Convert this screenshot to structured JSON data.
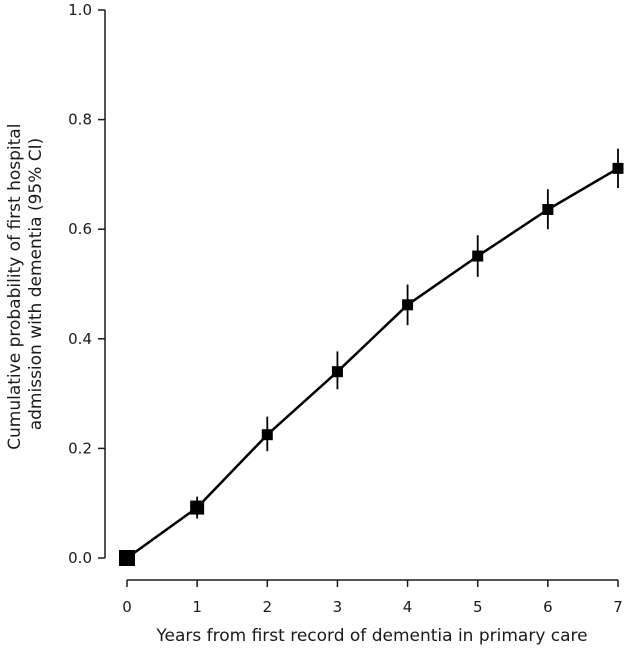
{
  "chart_data": {
    "type": "line",
    "title": "",
    "xlabel": "Years from first record of dementia in primary care",
    "ylabel_lines": [
      "Cumulative probability of first hospital",
      "admission with dementia (95% CI)"
    ],
    "xlim": [
      0,
      7
    ],
    "ylim": [
      0,
      1.0
    ],
    "x_ticks": [
      "0",
      "1",
      "2",
      "3",
      "4",
      "5",
      "6",
      "7"
    ],
    "y_ticks": [
      "0.0",
      "0.2",
      "0.4",
      "0.6",
      "0.8",
      "1.0"
    ],
    "grid": false,
    "legend": "none",
    "series": [
      {
        "x": [
          0,
          1,
          2,
          3,
          4,
          5,
          6,
          7
        ],
        "y": [
          0.0,
          0.092,
          0.225,
          0.34,
          0.462,
          0.551,
          0.636,
          0.711
        ],
        "ci_lower": [
          0.0,
          0.072,
          0.195,
          0.308,
          0.425,
          0.513,
          0.6,
          0.675
        ],
        "ci_upper": [
          0.0,
          0.112,
          0.258,
          0.377,
          0.499,
          0.589,
          0.673,
          0.747
        ],
        "marker_sizes": [
          16,
          14,
          11,
          11,
          11,
          11,
          11,
          11
        ]
      }
    ],
    "colors": {
      "line": "#000000",
      "axis": "#1a1a1a"
    }
  }
}
